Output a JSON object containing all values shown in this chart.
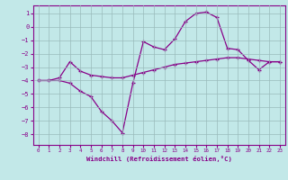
{
  "xlabel": "Windchill (Refroidissement éolien,°C)",
  "ylabel": "",
  "bg_color": "#c2e8e8",
  "line_color": "#880088",
  "grid_color": "#99bbbb",
  "xlim": [
    -0.5,
    23.5
  ],
  "ylim": [
    -8.8,
    1.6
  ],
  "xticks": [
    0,
    1,
    2,
    3,
    4,
    5,
    6,
    7,
    8,
    9,
    10,
    11,
    12,
    13,
    14,
    15,
    16,
    17,
    18,
    19,
    20,
    21,
    22,
    23
  ],
  "yticks": [
    1,
    0,
    -1,
    -2,
    -3,
    -4,
    -5,
    -6,
    -7,
    -8
  ],
  "line1_x": [
    0,
    1,
    2,
    3,
    4,
    5,
    6,
    7,
    8,
    9,
    10,
    11,
    12,
    13,
    14,
    15,
    16,
    17,
    18,
    19,
    20,
    21,
    22,
    23
  ],
  "line1_y": [
    -4.0,
    -4.0,
    -4.0,
    -4.2,
    -4.8,
    -5.2,
    -6.3,
    -7.0,
    -7.9,
    -4.2,
    -1.1,
    -1.5,
    -1.7,
    -0.9,
    0.4,
    1.0,
    1.1,
    0.7,
    -1.6,
    -1.7,
    -2.5,
    -3.2,
    -2.6,
    -2.6
  ],
  "line2_x": [
    0,
    1,
    2,
    3,
    4,
    5,
    6,
    7,
    8,
    9,
    10,
    11,
    12,
    13,
    14,
    15,
    16,
    17,
    18,
    19,
    20,
    21,
    22,
    23
  ],
  "line2_y": [
    -4.0,
    -4.0,
    -3.8,
    -2.6,
    -3.3,
    -3.6,
    -3.7,
    -3.8,
    -3.8,
    -3.6,
    -3.4,
    -3.2,
    -3.0,
    -2.8,
    -2.7,
    -2.6,
    -2.5,
    -2.4,
    -2.3,
    -2.3,
    -2.4,
    -2.5,
    -2.6,
    -2.6
  ]
}
